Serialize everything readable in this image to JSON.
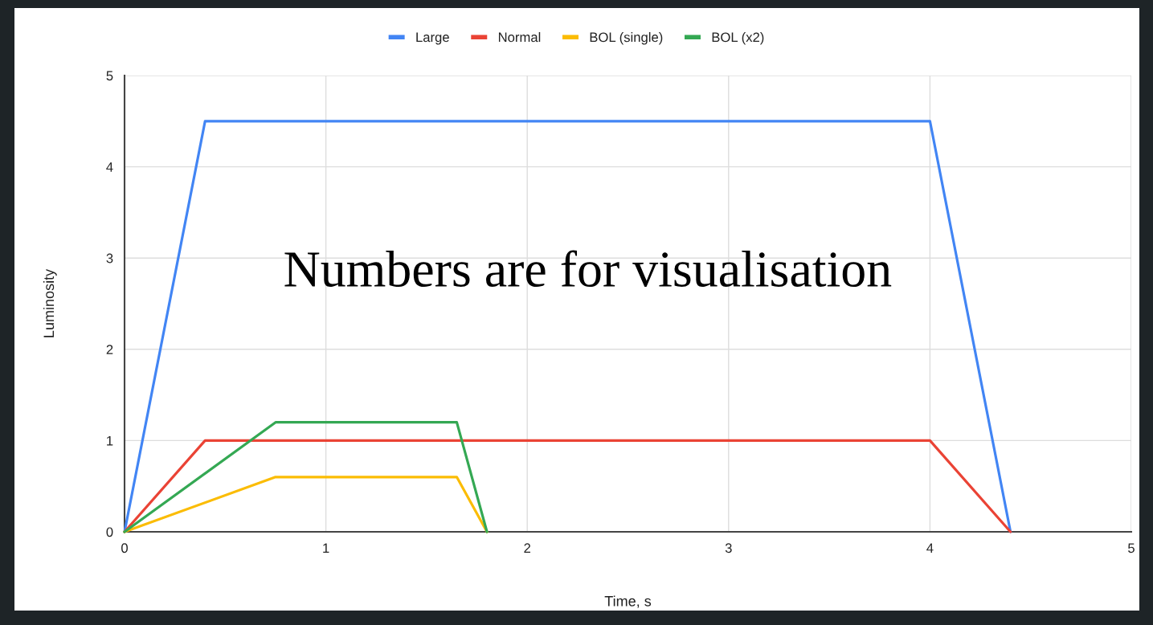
{
  "chart_data": {
    "type": "line",
    "xlabel": "Time, s",
    "ylabel": "Luminosity",
    "annotations": [
      "Numbers are for visualisation"
    ],
    "series": [
      {
        "name": "Large",
        "color": "#4285f4",
        "x": [
          0,
          0.4,
          4,
          4.4
        ],
        "values": [
          0,
          4.5,
          4.5,
          0
        ]
      },
      {
        "name": "Normal",
        "color": "#ea4335",
        "x": [
          0,
          0.4,
          4,
          4.4
        ],
        "values": [
          0,
          1,
          1,
          0
        ]
      },
      {
        "name": "BOL (single)",
        "color": "#fbbc04",
        "x": [
          0,
          0.75,
          1.65,
          1.8
        ],
        "values": [
          0,
          0.6,
          0.6,
          0
        ]
      },
      {
        "name": "BOL (x2)",
        "color": "#34a853",
        "x": [
          0,
          0.75,
          1.65,
          1.8
        ],
        "values": [
          0,
          1.2,
          1.2,
          0
        ]
      }
    ],
    "xlim": [
      0,
      5
    ],
    "xticks": [
      0,
      1,
      2,
      3,
      4,
      5
    ],
    "ylim": [
      0,
      5
    ],
    "yticks": [
      0,
      1,
      2,
      3,
      4,
      5
    ],
    "grid": true,
    "legend": "top",
    "marker": "none",
    "line_style": "solid"
  }
}
